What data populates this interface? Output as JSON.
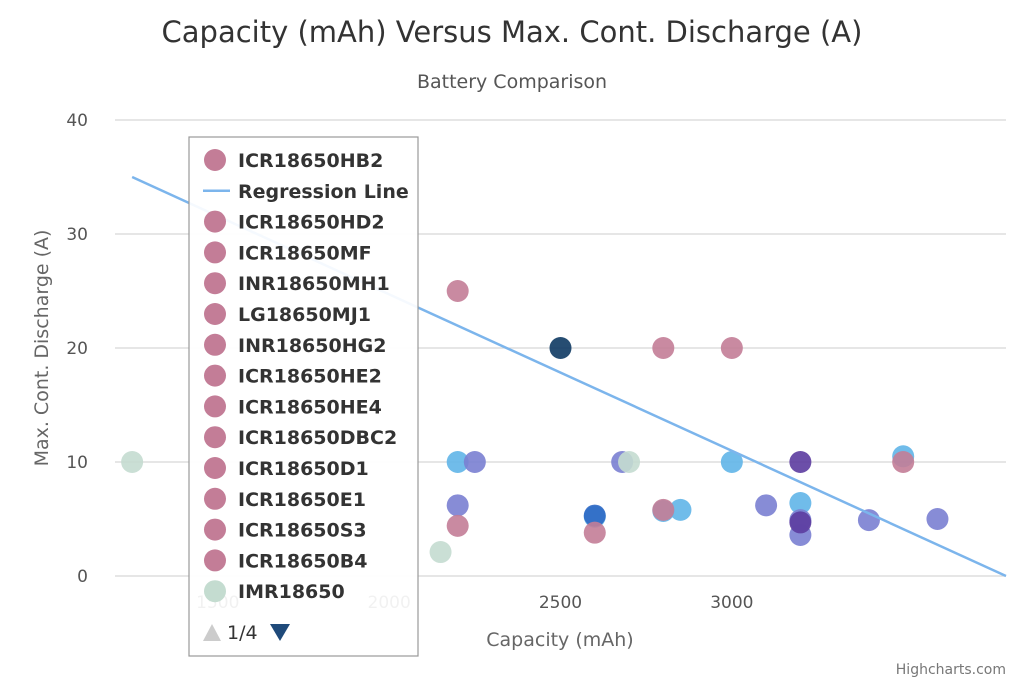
{
  "chart_data": {
    "type": "scatter",
    "title": "Capacity (mAh) Versus Max. Cont. Discharge (A)",
    "subtitle": "Battery Comparison",
    "xlabel": "Capacity (mAh)",
    "ylabel": "Max. Cont. Discharge (A)",
    "xlim": [
      1200,
      3800
    ],
    "ylim": [
      0,
      40
    ],
    "x_ticks": [
      1500,
      2000,
      2500,
      3000
    ],
    "y_ticks": [
      0,
      10,
      20,
      30,
      40
    ],
    "grid": true,
    "legend_position": "left",
    "regression_line": {
      "name": "Regression Line",
      "color": "#7cb5ec",
      "points": [
        [
          1250,
          35
        ],
        [
          3800,
          0
        ]
      ]
    },
    "series": [
      {
        "name": "ICR18650HB2",
        "color": "#c37d97",
        "points": [
          [
            2200,
            25
          ]
        ]
      },
      {
        "name": "ICR18650HD2",
        "color": "#c37d97",
        "points": [
          [
            2200,
            4.4
          ]
        ]
      },
      {
        "name": "ICR18650MF",
        "color": "#c37d97",
        "points": [
          [
            2600,
            3.8
          ]
        ]
      },
      {
        "name": "INR18650MH1",
        "color": "#c37d97",
        "points": [
          [
            2800,
            20
          ]
        ]
      },
      {
        "name": "LG18650MJ1",
        "color": "#c37d97",
        "points": [
          [
            3000,
            20
          ]
        ]
      },
      {
        "name": "INR18650HG2",
        "color": "#c37d97",
        "points": [
          [
            2800,
            5.8
          ]
        ]
      },
      {
        "name": "ICR18650HE2",
        "color": "#c37d97",
        "points": [
          [
            3500,
            10
          ]
        ]
      },
      {
        "name": "ICR18650HE4",
        "color": "#c37d97",
        "points": []
      },
      {
        "name": "ICR18650DBC2",
        "color": "#c37d97",
        "points": []
      },
      {
        "name": "ICR18650D1",
        "color": "#c37d97",
        "points": []
      },
      {
        "name": "ICR18650E1",
        "color": "#c37d97",
        "points": []
      },
      {
        "name": "ICR18650S3",
        "color": "#c37d97",
        "points": []
      },
      {
        "name": "ICR18650B4",
        "color": "#c37d97",
        "points": []
      },
      {
        "name": "IMR18650",
        "color": "#c4dcd0",
        "points": [
          [
            1250,
            10
          ],
          [
            2150,
            2.1
          ],
          [
            2700,
            10
          ]
        ]
      }
    ],
    "other_points": [
      {
        "color": "#60b5e8",
        "points": [
          [
            2200,
            10
          ],
          [
            2600,
            5.2
          ],
          [
            2800,
            5.7
          ],
          [
            2850,
            5.8
          ],
          [
            3000,
            10
          ],
          [
            3200,
            6.4
          ],
          [
            3500,
            10.5
          ]
        ]
      },
      {
        "color": "#7a7fd2",
        "points": [
          [
            2200,
            6.2
          ],
          [
            2250,
            10
          ],
          [
            2680,
            10
          ],
          [
            3100,
            6.2
          ],
          [
            3200,
            4.9
          ],
          [
            3200,
            3.6
          ],
          [
            3400,
            4.9
          ],
          [
            3600,
            5
          ]
        ]
      },
      {
        "color": "#2d68c4",
        "points": [
          [
            2600,
            5.3
          ]
        ]
      },
      {
        "color": "#5c3ca0",
        "points": [
          [
            3200,
            10
          ],
          [
            3200,
            4.7
          ]
        ]
      },
      {
        "color": "#0e3a63",
        "points": [
          [
            2500,
            20
          ]
        ]
      }
    ],
    "legend_page": "1/4"
  },
  "credit": "Highcharts.com"
}
